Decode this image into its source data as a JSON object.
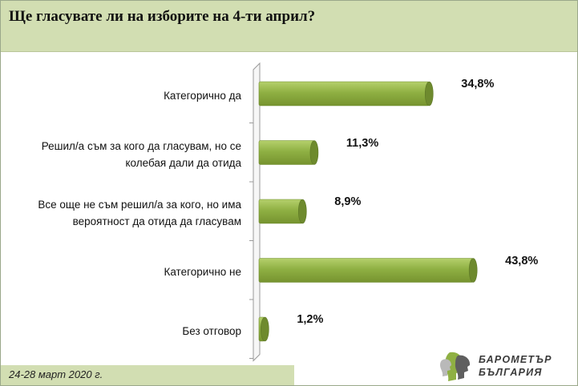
{
  "title": "Ще гласувате ли на изборите на 4-ти април?",
  "date": "24-28 март 2020 г.",
  "logo": {
    "line1": "БАРОМЕТЪР",
    "line2": "БЪЛГАРИЯ"
  },
  "colors": {
    "bar": "#8fb043",
    "bar_top": "#b5d06c",
    "bar_cap": "#6e8a2e",
    "header": "#d2deb2"
  },
  "chart_data": {
    "type": "bar",
    "orientation": "horizontal",
    "categories": [
      "Категорично да",
      "Решил/а съм за кого да гласувам, но се колебая дали да отида",
      "Все още не съм решил/а за кого, но има вероятност да отида да гласувам",
      "Категорично не",
      "Без отговор"
    ],
    "values": [
      34.8,
      11.3,
      8.9,
      43.8,
      1.2
    ],
    "value_labels": [
      "34,8%",
      "11,3%",
      "8,9%",
      "43,8%",
      "1,2%"
    ],
    "xlim": [
      0,
      50
    ],
    "grid": false,
    "legend": "none"
  }
}
